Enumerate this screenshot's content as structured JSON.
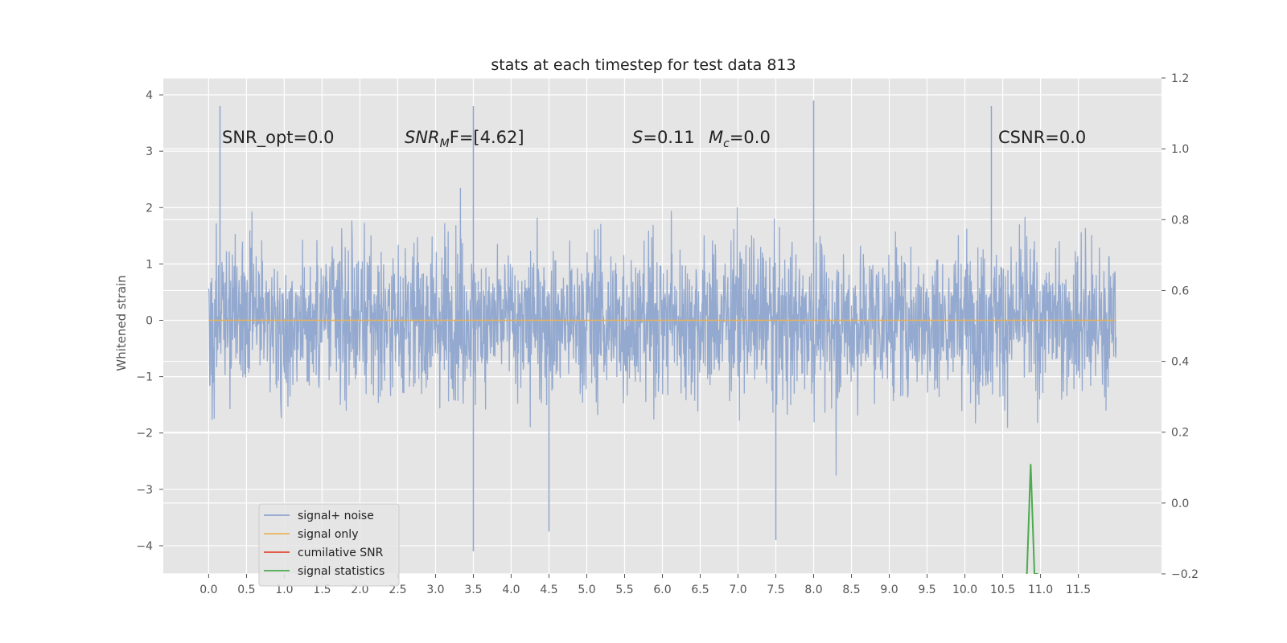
{
  "chart_data": {
    "type": "line",
    "title": "stats at each timestep for test data 813",
    "ylabel": "Whitened strain",
    "xlabel": "",
    "xlim": [
      -0.6,
      12.6
    ],
    "ylim": [
      -4.5,
      4.3
    ],
    "y2lim": [
      -0.2,
      1.2
    ],
    "x_ticks": [
      0.0,
      0.5,
      1.0,
      1.5,
      2.0,
      2.5,
      3.0,
      3.5,
      4.0,
      4.5,
      5.0,
      5.5,
      6.0,
      6.5,
      7.0,
      7.5,
      8.0,
      8.5,
      9.0,
      9.5,
      10.0,
      10.5,
      11.0,
      11.5
    ],
    "x_tick_labels": [
      "0.0",
      "0.5",
      "1.0",
      "1.5",
      "2.0",
      "2.5",
      "3.0",
      "3.5",
      "4.0",
      "4.5",
      "5.0",
      "5.5",
      "6.0",
      "6.5",
      "7.0",
      "7.5",
      "8.0",
      "8.5",
      "9.0",
      "9.5",
      "10.0",
      "10.5",
      "11.0",
      "11.5"
    ],
    "y_ticks": [
      -4,
      -3,
      -2,
      -1,
      0,
      1,
      2,
      3,
      4
    ],
    "y_tick_labels": [
      "−4",
      "−3",
      "−2",
      "−1",
      "0",
      "1",
      "2",
      "3",
      "4"
    ],
    "y2_ticks": [
      -0.2,
      0.0,
      0.2,
      0.4,
      0.6,
      0.8,
      1.0,
      1.2
    ],
    "y2_tick_labels": [
      "−0.2",
      "0.0",
      "0.2",
      "0.4",
      "0.6",
      "0.8",
      "1.0",
      "1.2"
    ],
    "grid": true,
    "legend_position": "lower-left",
    "colors": {
      "background": "#e5e5e5",
      "grid": "#ffffff",
      "signal_noise": "#8fa5cd",
      "signal_only": "#e8b35a",
      "cumulative_snr": "#e24a33",
      "signal_statistics": "#4caa4f",
      "text": "#555555"
    },
    "series": [
      {
        "name": "signal+ noise",
        "axis": "left",
        "x_range": [
          0.0,
          12.0
        ],
        "typical_range": [
          -2.2,
          2.5
        ],
        "extreme_range": [
          -4.1,
          3.9
        ],
        "notable_peaks": [
          [
            0.15,
            3.8
          ],
          [
            3.5,
            3.8
          ],
          [
            8.0,
            3.9
          ],
          [
            10.35,
            3.8
          ],
          [
            3.5,
            -4.1
          ],
          [
            7.5,
            -3.9
          ],
          [
            4.5,
            -3.75
          ]
        ]
      },
      {
        "name": "signal only",
        "axis": "left",
        "x": [
          0.0,
          12.0
        ],
        "values": [
          0.0,
          0.0
        ]
      },
      {
        "name": "cumilative SNR",
        "axis": "right",
        "x": [],
        "values": []
      },
      {
        "name": "signal statistics",
        "axis": "right",
        "x": [
          10.82,
          10.87,
          10.92,
          10.97
        ],
        "values": [
          -0.2,
          0.11,
          -0.2,
          -0.2
        ]
      }
    ],
    "annotations": [
      {
        "key": "snr_opt",
        "text": "SNR_opt=0.0"
      },
      {
        "key": "snr_mf",
        "text": "SNR",
        "sub": "M",
        "after": "F=[4.62]"
      },
      {
        "key": "s",
        "text": "S",
        "after": "=0.11"
      },
      {
        "key": "mc",
        "text": "M",
        "sub": "c",
        "after": "=0.0"
      },
      {
        "key": "csnr",
        "text": "CSNR=0.0"
      }
    ],
    "legend": [
      {
        "label": "signal+ noise",
        "color": "#8fa5cd"
      },
      {
        "label": "signal only",
        "color": "#e8b35a"
      },
      {
        "label": "cumilative SNR",
        "color": "#e24a33"
      },
      {
        "label": "signal statistics",
        "color": "#4caa4f"
      }
    ]
  }
}
